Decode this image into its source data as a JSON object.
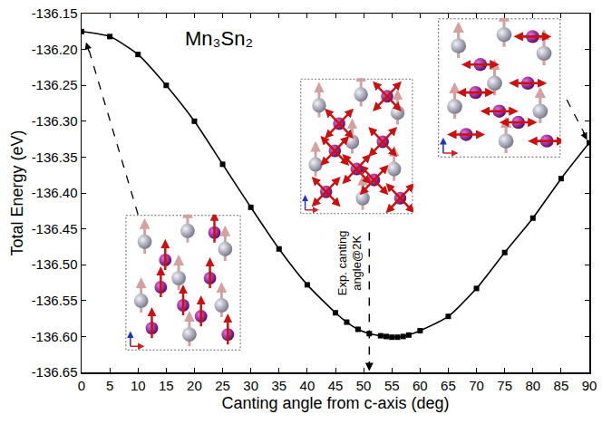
{
  "chart_data": {
    "type": "line",
    "title": "Mn₃Sn₂",
    "x_label": "Canting angle from c-axis (deg)",
    "y_label": "Total Energy (eV)",
    "color": "#000000",
    "marker": "square",
    "line_style": "solid",
    "grid": false,
    "x": [
      0,
      5,
      10,
      15,
      20,
      25,
      30,
      35,
      40,
      45,
      47,
      49,
      51,
      53,
      54,
      55,
      56,
      57,
      58,
      60,
      65,
      70,
      75,
      80,
      85,
      90
    ],
    "values": [
      -136.175,
      -136.182,
      -136.207,
      -136.25,
      -136.3,
      -136.36,
      -136.42,
      -136.478,
      -136.528,
      -136.567,
      -136.58,
      -136.59,
      -136.596,
      -136.599,
      -136.6,
      -136.601,
      -136.601,
      -136.6,
      -136.598,
      -136.592,
      -136.572,
      -136.533,
      -136.483,
      -136.435,
      -136.38,
      -136.33
    ],
    "xlim": [
      0,
      90
    ],
    "xticks": [
      0,
      5,
      10,
      15,
      20,
      25,
      30,
      35,
      40,
      45,
      50,
      55,
      60,
      65,
      70,
      75,
      80,
      85,
      90
    ],
    "ylim": [
      -136.65,
      -136.15
    ],
    "yticks": [
      {
        "value": -136.65,
        "label": "-136.65"
      },
      {
        "value": -136.6,
        "label": "-136.60"
      },
      {
        "value": -136.55,
        "label": "-136.55"
      },
      {
        "value": -136.5,
        "label": "-136.50"
      },
      {
        "value": -136.45,
        "label": "-136.45"
      },
      {
        "value": -136.4,
        "label": "-136.40"
      },
      {
        "value": -136.35,
        "label": "-136.35"
      },
      {
        "value": -136.3,
        "label": "-136.30"
      },
      {
        "value": -136.25,
        "label": "-136.25"
      },
      {
        "value": -136.2,
        "label": "-136.20"
      },
      {
        "value": -136.15,
        "label": "-136.15"
      }
    ],
    "annotations": [
      {
        "text": "Exp. canting angle@2K",
        "x": 51
      }
    ]
  }
}
